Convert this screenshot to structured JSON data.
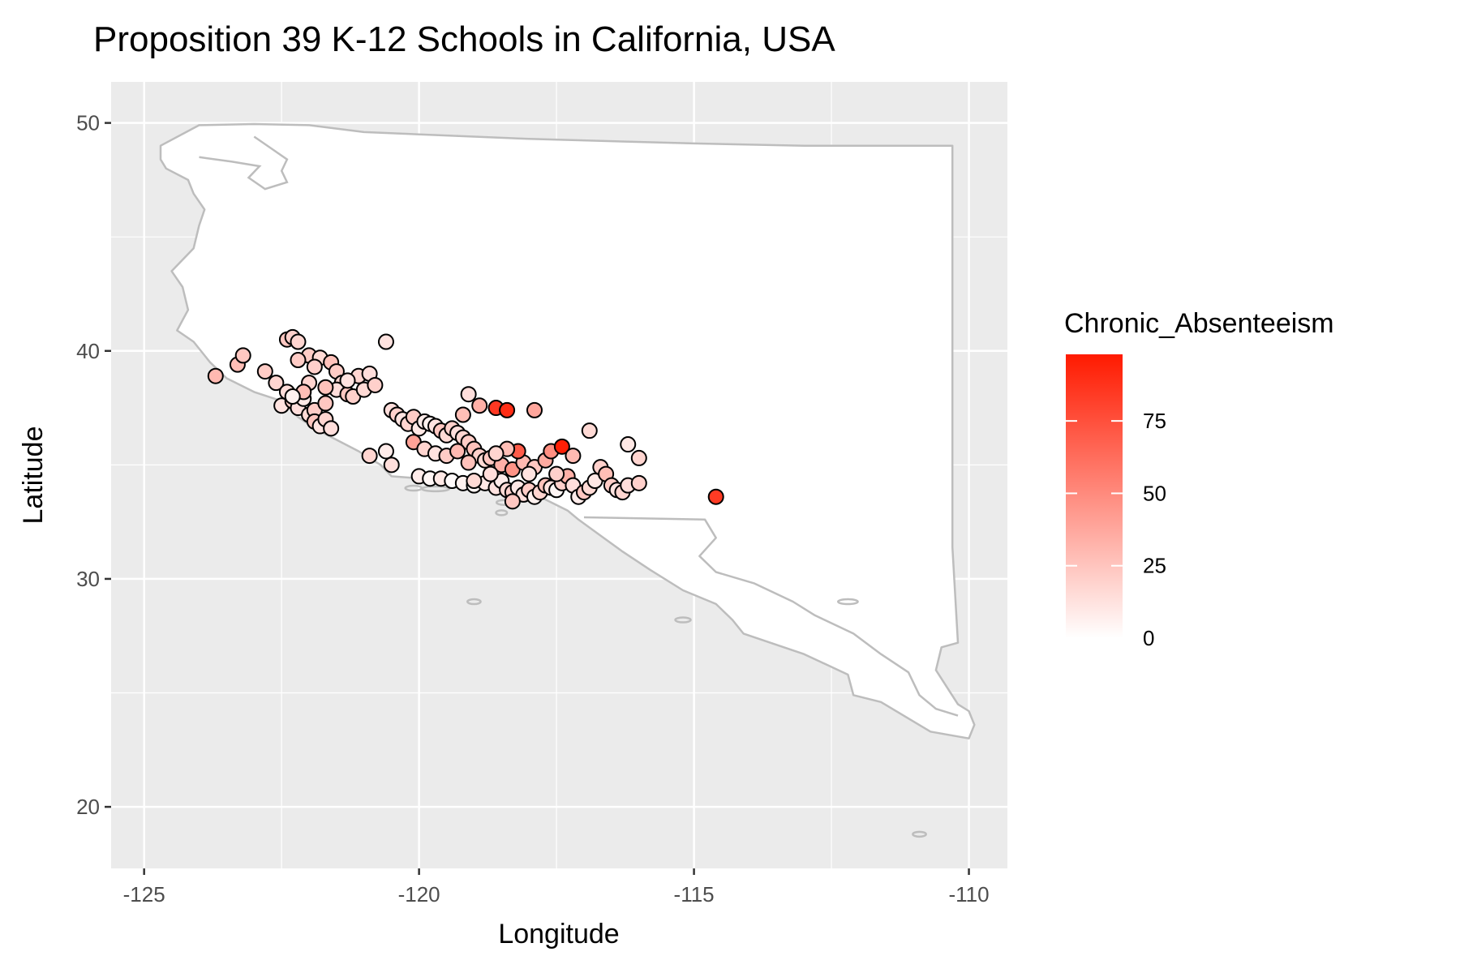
{
  "chart_data": {
    "type": "scatter",
    "title": "Proposition 39 K-12 Schools in California, USA",
    "xlabel": "Longitude",
    "ylabel": "Latitude",
    "xlim": [
      -125.6,
      -109.3
    ],
    "ylim": [
      17.3,
      51.8
    ],
    "x_ticks": [
      -125,
      -120,
      -115,
      -110
    ],
    "x_tick_labels": [
      "-125",
      "-120",
      "-115",
      "-110"
    ],
    "y_ticks": [
      20,
      30,
      40,
      50
    ],
    "y_tick_labels": [
      "20",
      "30",
      "40",
      "50"
    ],
    "grid": true,
    "legend": {
      "title": "Chronic_Absenteeism",
      "placement": "right",
      "min": 0,
      "max": 98,
      "ticks": [
        0,
        25,
        50,
        75
      ],
      "tick_labels": [
        "0",
        "25",
        "50",
        "75"
      ],
      "low_color": "#ffffff",
      "high_color": "#ff1a00"
    },
    "colors": {
      "panel": "#ebebeb",
      "grid": "#ffffff",
      "map_fill": "#ffffff",
      "map_stroke": "#bdbdbd",
      "point_stroke": "#000000"
    },
    "series": [
      {
        "points": [
          [
            -123.7,
            38.9,
            30
          ],
          [
            -123.3,
            39.4,
            28
          ],
          [
            -123.2,
            39.8,
            24
          ],
          [
            -122.8,
            39.1,
            22
          ],
          [
            -122.6,
            38.6,
            18
          ],
          [
            -122.4,
            38.2,
            15
          ],
          [
            -122.5,
            37.6,
            12
          ],
          [
            -122.3,
            37.8,
            20
          ],
          [
            -122.2,
            37.5,
            14
          ],
          [
            -122.1,
            37.9,
            10
          ],
          [
            -122.0,
            37.2,
            16
          ],
          [
            -121.9,
            37.4,
            22
          ],
          [
            -121.9,
            36.9,
            25
          ],
          [
            -121.8,
            36.7,
            12
          ],
          [
            -121.7,
            37.0,
            18
          ],
          [
            -121.6,
            36.6,
            14
          ],
          [
            -122.4,
            40.5,
            24
          ],
          [
            -122.3,
            40.6,
            20
          ],
          [
            -122.2,
            40.4,
            18
          ],
          [
            -122.0,
            39.8,
            22
          ],
          [
            -121.8,
            39.7,
            16
          ],
          [
            -121.9,
            39.3,
            20
          ],
          [
            -121.6,
            39.5,
            26
          ],
          [
            -121.5,
            39.1,
            22
          ],
          [
            -121.4,
            38.6,
            18
          ],
          [
            -121.5,
            38.3,
            14
          ],
          [
            -121.3,
            38.1,
            24
          ],
          [
            -121.2,
            38.0,
            20
          ],
          [
            -121.0,
            38.3,
            16
          ],
          [
            -121.1,
            38.9,
            18
          ],
          [
            -120.9,
            39.0,
            14
          ],
          [
            -120.8,
            38.5,
            20
          ],
          [
            -120.6,
            40.4,
            12
          ],
          [
            -122.2,
            39.6,
            22
          ],
          [
            -122.0,
            38.6,
            18
          ],
          [
            -121.7,
            38.4,
            26
          ],
          [
            -121.3,
            38.7,
            12
          ],
          [
            -122.1,
            38.2,
            28
          ],
          [
            -121.7,
            37.7,
            24
          ],
          [
            -122.3,
            38.0,
            6
          ],
          [
            -120.5,
            37.4,
            14
          ],
          [
            -120.4,
            37.2,
            20
          ],
          [
            -120.3,
            37.0,
            12
          ],
          [
            -120.2,
            36.8,
            18
          ],
          [
            -120.1,
            37.1,
            22
          ],
          [
            -120.0,
            36.6,
            10
          ],
          [
            -119.9,
            36.9,
            8
          ],
          [
            -119.8,
            36.8,
            6
          ],
          [
            -119.7,
            36.7,
            12
          ],
          [
            -119.6,
            36.5,
            24
          ],
          [
            -119.5,
            36.3,
            16
          ],
          [
            -119.4,
            36.6,
            20
          ],
          [
            -119.3,
            36.4,
            14
          ],
          [
            -119.2,
            36.2,
            18
          ],
          [
            -119.1,
            36.0,
            22
          ],
          [
            -119.0,
            35.7,
            26
          ],
          [
            -118.9,
            35.4,
            20
          ],
          [
            -118.8,
            35.2,
            16
          ],
          [
            -119.2,
            37.2,
            28
          ],
          [
            -119.1,
            38.1,
            14
          ],
          [
            -118.9,
            37.6,
            34
          ],
          [
            -118.6,
            37.5,
            85
          ],
          [
            -118.4,
            37.4,
            90
          ],
          [
            -117.9,
            37.4,
            38
          ],
          [
            -120.1,
            36.0,
            40
          ],
          [
            -119.9,
            35.7,
            18
          ],
          [
            -119.7,
            35.5,
            12
          ],
          [
            -119.5,
            35.4,
            22
          ],
          [
            -119.3,
            35.6,
            30
          ],
          [
            -119.1,
            35.1,
            26
          ],
          [
            -118.7,
            35.3,
            24
          ],
          [
            -118.5,
            35.0,
            34
          ],
          [
            -118.3,
            34.8,
            46
          ],
          [
            -118.1,
            35.1,
            30
          ],
          [
            -117.9,
            34.9,
            24
          ],
          [
            -117.7,
            35.2,
            36
          ],
          [
            -117.6,
            35.6,
            48
          ],
          [
            -117.4,
            35.8,
            96
          ],
          [
            -117.2,
            35.4,
            30
          ],
          [
            -118.2,
            35.6,
            70
          ],
          [
            -118.4,
            35.7,
            28
          ],
          [
            -118.6,
            35.5,
            18
          ],
          [
            -120.0,
            34.5,
            8
          ],
          [
            -119.8,
            34.4,
            4
          ],
          [
            -119.6,
            34.4,
            10
          ],
          [
            -119.4,
            34.3,
            2
          ],
          [
            -119.2,
            34.2,
            6
          ],
          [
            -119.0,
            34.1,
            4
          ],
          [
            -118.8,
            34.2,
            10
          ],
          [
            -118.6,
            34.0,
            12
          ],
          [
            -118.5,
            34.3,
            8
          ],
          [
            -118.4,
            33.9,
            16
          ],
          [
            -118.3,
            33.8,
            20
          ],
          [
            -118.2,
            34.0,
            10
          ],
          [
            -118.1,
            33.7,
            14
          ],
          [
            -118.0,
            33.9,
            22
          ],
          [
            -117.9,
            33.6,
            6
          ],
          [
            -117.8,
            33.8,
            18
          ],
          [
            -117.7,
            34.1,
            26
          ],
          [
            -117.6,
            34.0,
            12
          ],
          [
            -117.5,
            33.9,
            4
          ],
          [
            -117.4,
            34.2,
            20
          ],
          [
            -117.3,
            34.5,
            34
          ],
          [
            -117.2,
            34.1,
            14
          ],
          [
            -117.1,
            33.6,
            8
          ],
          [
            -117.0,
            33.8,
            24
          ],
          [
            -116.9,
            34.0,
            16
          ],
          [
            -116.8,
            34.3,
            10
          ],
          [
            -116.7,
            34.9,
            20
          ],
          [
            -116.6,
            34.6,
            28
          ],
          [
            -116.5,
            34.1,
            22
          ],
          [
            -116.4,
            33.9,
            12
          ],
          [
            -116.3,
            33.8,
            18
          ],
          [
            -116.2,
            34.1,
            14
          ],
          [
            -116.0,
            34.2,
            20
          ],
          [
            -116.0,
            35.3,
            18
          ],
          [
            -116.2,
            35.9,
            10
          ],
          [
            -116.9,
            36.5,
            16
          ],
          [
            -114.6,
            33.6,
            84
          ],
          [
            -118.3,
            33.4,
            24
          ],
          [
            -118.0,
            34.6,
            12
          ],
          [
            -117.5,
            34.6,
            20
          ],
          [
            -118.7,
            34.6,
            14
          ],
          [
            -119.0,
            34.3,
            16
          ],
          [
            -120.6,
            35.6,
            8
          ],
          [
            -120.5,
            35.0,
            14
          ],
          [
            -120.9,
            35.4,
            18
          ]
        ]
      }
    ]
  }
}
